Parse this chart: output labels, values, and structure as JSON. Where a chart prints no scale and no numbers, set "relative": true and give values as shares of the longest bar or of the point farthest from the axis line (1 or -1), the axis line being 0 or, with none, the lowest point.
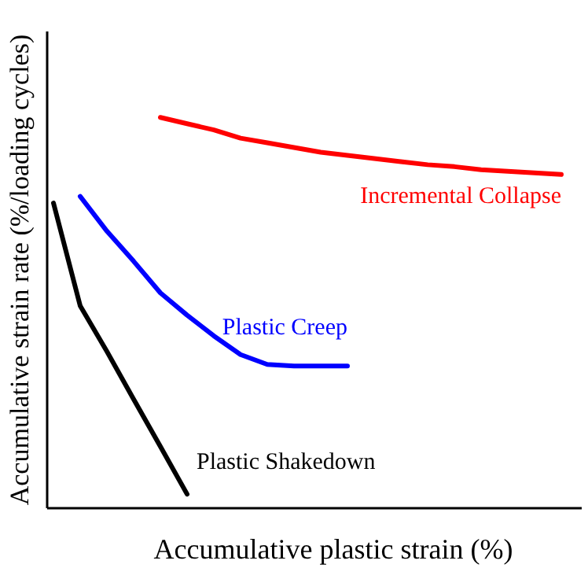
{
  "chart_data": {
    "type": "line",
    "relative": true,
    "xlabel": "Accumulative plastic strain (%)",
    "ylabel": "Accumulative strain rate (%/loading cycles)",
    "line_style": "solid",
    "categories": [
      null,
      null,
      null,
      null,
      null,
      null,
      null,
      null,
      null,
      null,
      null,
      null,
      null,
      null,
      null,
      null,
      null,
      null,
      null,
      null
    ],
    "series": [
      {
        "name": "Incremental Collapse",
        "color": "#ff0000",
        "values": [
          null,
          null,
          null,
          null,
          1,
          0.984,
          0.968,
          0.947,
          0.935,
          0.923,
          0.911,
          0.903,
          0.895,
          0.887,
          0.879,
          0.874,
          0.866,
          0.862,
          0.858,
          0.854
        ]
      },
      {
        "name": "Plastic Creep",
        "color": "#0000ff",
        "values": [
          null,
          0.798,
          0.709,
          0.632,
          0.551,
          0.494,
          0.441,
          0.393,
          0.368,
          0.364,
          0.364,
          0.364,
          null,
          null,
          null,
          null,
          null,
          null,
          null,
          null
        ]
      },
      {
        "name": "Plastic Shakedown",
        "color": "#000000",
        "values": [
          0.781,
          0.518,
          0.401,
          0.279,
          0.158,
          0.036,
          null,
          null,
          null,
          null,
          null,
          null,
          null,
          null,
          null,
          null,
          null,
          null,
          null,
          null
        ]
      }
    ]
  }
}
